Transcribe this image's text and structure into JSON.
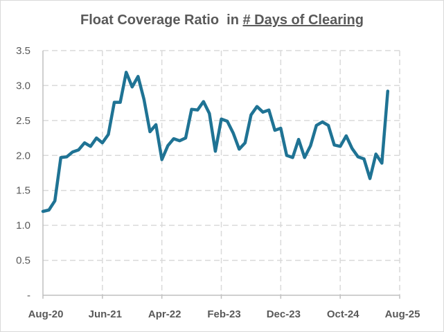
{
  "chart_data": {
    "type": "line",
    "title": "Float Coverage Ratio  in ",
    "title_emphasis": "# Days of Clearing",
    "xlabel": "",
    "ylabel": "",
    "x_tick_labels": [
      "Aug-20",
      "Jun-21",
      "Apr-22",
      "Feb-23",
      "Dec-23",
      "Oct-24",
      "Aug-25"
    ],
    "y_tick_labels": [
      "-",
      "0.5",
      "1.0",
      "1.5",
      "2.0",
      "2.5",
      "3.0",
      "3.5"
    ],
    "ylim": [
      0,
      3.5
    ],
    "xlim": [
      "2020-08",
      "2025-08"
    ],
    "grid": true,
    "legend": "none",
    "series": [
      {
        "color": "#1F7394",
        "x": [
          "2020-08",
          "2020-09",
          "2020-10",
          "2020-11",
          "2020-12",
          "2021-01",
          "2021-02",
          "2021-03",
          "2021-04",
          "2021-05",
          "2021-06",
          "2021-07",
          "2021-08",
          "2021-09",
          "2021-10",
          "2021-11",
          "2021-12",
          "2022-01",
          "2022-02",
          "2022-03",
          "2022-04",
          "2022-05",
          "2022-06",
          "2022-07",
          "2022-08",
          "2022-09",
          "2022-10",
          "2022-11",
          "2022-12",
          "2023-01",
          "2023-02",
          "2023-03",
          "2023-04",
          "2023-05",
          "2023-06",
          "2023-07",
          "2023-08",
          "2023-09",
          "2023-10",
          "2023-11",
          "2023-12",
          "2024-01",
          "2024-02",
          "2024-03",
          "2024-04",
          "2024-05",
          "2024-06",
          "2024-07",
          "2024-08",
          "2024-09",
          "2024-10",
          "2024-11",
          "2024-12",
          "2025-01",
          "2025-02",
          "2025-03",
          "2025-04",
          "2025-05",
          "2025-06"
        ],
        "values": [
          1.2,
          1.22,
          1.35,
          1.97,
          1.98,
          2.05,
          2.08,
          2.18,
          2.13,
          2.25,
          2.18,
          2.3,
          2.76,
          2.76,
          3.19,
          2.98,
          3.13,
          2.8,
          2.34,
          2.44,
          1.94,
          2.14,
          2.24,
          2.21,
          2.25,
          2.66,
          2.65,
          2.77,
          2.6,
          2.06,
          2.52,
          2.49,
          2.32,
          2.09,
          2.18,
          2.58,
          2.7,
          2.62,
          2.65,
          2.36,
          2.39,
          2.0,
          1.97,
          2.23,
          1.97,
          2.14,
          2.43,
          2.48,
          2.43,
          2.15,
          2.13,
          2.28,
          2.1,
          1.98,
          1.95,
          1.67,
          2.02,
          1.89,
          2.92
        ]
      }
    ]
  }
}
